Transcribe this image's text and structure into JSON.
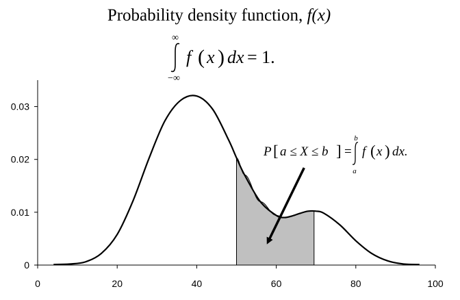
{
  "title": {
    "text": "Probability density function, ",
    "fx": "f(x)"
  },
  "normalization": {
    "upper_limit": "∞",
    "lower_limit": "−∞",
    "integrand": "f",
    "variable": "x",
    "differential": "dx",
    "equals": "= 1."
  },
  "annotation": {
    "P": "P",
    "bracket_open": "[",
    "inequality": "a ≤ X ≤ b",
    "bracket_close": "]",
    "equals": "=",
    "upper_limit": "b",
    "lower_limit": "a",
    "integrand": "f",
    "variable": "x",
    "differential": "dx."
  },
  "chart_data": {
    "type": "area",
    "title": "Probability density function, f(x)",
    "xlabel": "",
    "ylabel": "",
    "xlim": [
      0,
      100
    ],
    "ylim": [
      0,
      0.035
    ],
    "x_ticks": [
      0,
      20,
      40,
      60,
      80,
      100
    ],
    "x_tick_labels": [
      "0",
      "20",
      "40",
      "60",
      "80",
      "100"
    ],
    "y_ticks": [
      0,
      0.01,
      0.02,
      0.03
    ],
    "y_tick_labels": [
      "0",
      "0.01",
      "0.02",
      "0.03"
    ],
    "grid": false,
    "series": [
      {
        "x": [
          4,
          8,
          12,
          16,
          20,
          24,
          28,
          32,
          36,
          40,
          44,
          48,
          50,
          52,
          56,
          60,
          62,
          64,
          66,
          68,
          70,
          72,
          76,
          80,
          84,
          88,
          92,
          96
        ],
        "y": [
          0.0001,
          0.0002,
          0.0006,
          0.0022,
          0.0058,
          0.0122,
          0.0202,
          0.0273,
          0.0312,
          0.032,
          0.0295,
          0.0237,
          0.0203,
          0.0171,
          0.012,
          0.0094,
          0.009,
          0.0093,
          0.0098,
          0.0102,
          0.0102,
          0.0098,
          0.0076,
          0.0046,
          0.0022,
          0.0008,
          0.0002,
          0.0001
        ]
      }
    ],
    "shaded_region": {
      "from": 50,
      "to": 69.5,
      "color": "#c0c0c0"
    },
    "arrow": {
      "from": [
        67,
        0.0184
      ],
      "to": [
        58,
        0.0045
      ]
    },
    "colors": {
      "curve": "#000000",
      "shade": "#c0c0c0"
    }
  }
}
